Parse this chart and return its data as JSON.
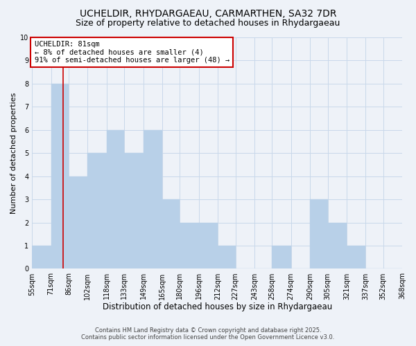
{
  "title": "UCHELDIR, RHYDARGAEAU, CARMARTHEN, SA32 7DR",
  "subtitle": "Size of property relative to detached houses in Rhydargaeau",
  "xlabel": "Distribution of detached houses by size in Rhydargaeau",
  "ylabel": "Number of detached properties",
  "bin_edges": [
    55,
    71,
    86,
    102,
    118,
    133,
    149,
    165,
    180,
    196,
    212,
    227,
    243,
    258,
    274,
    290,
    305,
    321,
    337,
    352,
    368
  ],
  "bar_heights": [
    1,
    8,
    4,
    5,
    6,
    5,
    6,
    3,
    2,
    2,
    1,
    0,
    0,
    1,
    0,
    3,
    2,
    1,
    0,
    0
  ],
  "bar_color": "#b8d0e8",
  "bar_edge_color": "#b8d0e8",
  "grid_color": "#c8d8ea",
  "background_color": "#eef2f8",
  "property_line_x": 81,
  "property_line_color": "#cc0000",
  "annotation_line1": "UCHELDIR: 81sqm",
  "annotation_line2": "← 8% of detached houses are smaller (4)",
  "annotation_line3": "91% of semi-detached houses are larger (48) →",
  "annotation_box_color": "#ffffff",
  "annotation_box_edge": "#cc0000",
  "ylim": [
    0,
    10
  ],
  "yticks": [
    0,
    1,
    2,
    3,
    4,
    5,
    6,
    7,
    8,
    9,
    10
  ],
  "footer_line1": "Contains HM Land Registry data © Crown copyright and database right 2025.",
  "footer_line2": "Contains public sector information licensed under the Open Government Licence v3.0.",
  "title_fontsize": 10,
  "subtitle_fontsize": 9,
  "xlabel_fontsize": 8.5,
  "ylabel_fontsize": 8,
  "tick_fontsize": 7,
  "annotation_fontsize": 7.5,
  "footer_fontsize": 6
}
